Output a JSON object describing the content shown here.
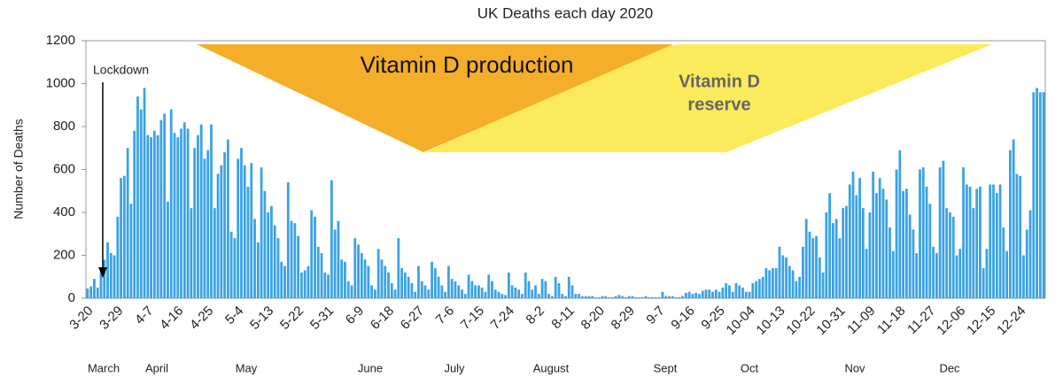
{
  "chart_data": {
    "type": "bar",
    "title": "UK Deaths each day 2020",
    "ylabel": "Number of Deaths",
    "categories": [
      "3-20",
      null,
      null,
      null,
      null,
      null,
      null,
      null,
      null,
      "3-29",
      null,
      null,
      null,
      null,
      null,
      null,
      null,
      null,
      "4-7",
      null,
      null,
      null,
      null,
      null,
      null,
      null,
      null,
      "4-16",
      null,
      null,
      null,
      null,
      null,
      null,
      null,
      null,
      "4-25",
      null,
      null,
      null,
      null,
      null,
      null,
      null,
      null,
      "5-4",
      null,
      null,
      null,
      null,
      null,
      null,
      null,
      null,
      "5-13",
      null,
      null,
      null,
      null,
      null,
      null,
      null,
      null,
      "5-22",
      null,
      null,
      null,
      null,
      null,
      null,
      null,
      null,
      "5-31",
      null,
      null,
      null,
      null,
      null,
      null,
      null,
      null,
      "6-9",
      null,
      null,
      null,
      null,
      null,
      null,
      null,
      null,
      "6-18",
      null,
      null,
      null,
      null,
      null,
      null,
      null,
      null,
      "6-27",
      null,
      null,
      null,
      null,
      null,
      null,
      null,
      null,
      "7-6",
      null,
      null,
      null,
      null,
      null,
      null,
      null,
      null,
      "7-15",
      null,
      null,
      null,
      null,
      null,
      null,
      null,
      null,
      "7-24",
      null,
      null,
      null,
      null,
      null,
      null,
      null,
      null,
      "8-2",
      null,
      null,
      null,
      null,
      null,
      null,
      null,
      null,
      "8-11",
      null,
      null,
      null,
      null,
      null,
      null,
      null,
      null,
      "8-20",
      null,
      null,
      null,
      null,
      null,
      null,
      null,
      null,
      "8-29",
      null,
      null,
      null,
      null,
      null,
      null,
      null,
      null,
      "9-7",
      null,
      null,
      null,
      null,
      null,
      null,
      null,
      null,
      "9-16",
      null,
      null,
      null,
      null,
      null,
      null,
      null,
      null,
      "9-25",
      null,
      null,
      null,
      null,
      null,
      null,
      null,
      null,
      "10-04",
      null,
      null,
      null,
      null,
      null,
      null,
      null,
      null,
      "10-13",
      null,
      null,
      null,
      null,
      null,
      null,
      null,
      null,
      "10-22",
      null,
      null,
      null,
      null,
      null,
      null,
      null,
      null,
      "10-31",
      null,
      null,
      null,
      null,
      null,
      null,
      null,
      null,
      "11-09",
      null,
      null,
      null,
      null,
      null,
      null,
      null,
      null,
      "11-18",
      null,
      null,
      null,
      null,
      null,
      null,
      null,
      null,
      "11-27",
      null,
      null,
      null,
      null,
      null,
      null,
      null,
      null,
      "12-06",
      null,
      null,
      null,
      null,
      null,
      null,
      null,
      null,
      "12-15",
      null,
      null,
      null,
      null,
      null,
      null,
      null,
      null,
      "12-24",
      null,
      null,
      null,
      null,
      null,
      null,
      null
    ],
    "values": [
      45,
      55,
      90,
      50,
      120,
      180,
      260,
      210,
      200,
      380,
      560,
      570,
      700,
      440,
      780,
      940,
      880,
      980,
      760,
      750,
      780,
      760,
      830,
      860,
      450,
      880,
      770,
      750,
      790,
      820,
      790,
      420,
      700,
      760,
      810,
      650,
      690,
      810,
      420,
      580,
      620,
      680,
      740,
      310,
      280,
      650,
      700,
      620,
      520,
      630,
      370,
      260,
      610,
      500,
      400,
      430,
      340,
      280,
      170,
      150,
      540,
      360,
      350,
      290,
      120,
      130,
      150,
      410,
      380,
      240,
      210,
      120,
      110,
      550,
      320,
      360,
      180,
      170,
      80,
      60,
      280,
      250,
      210,
      180,
      150,
      60,
      40,
      230,
      180,
      150,
      120,
      70,
      40,
      280,
      140,
      120,
      100,
      70,
      30,
      150,
      80,
      60,
      40,
      170,
      140,
      100,
      60,
      30,
      150,
      90,
      80,
      60,
      40,
      20,
      110,
      80,
      60,
      60,
      50,
      30,
      110,
      80,
      40,
      30,
      20,
      15,
      120,
      60,
      50,
      40,
      20,
      120,
      80,
      40,
      60,
      20,
      90,
      80,
      20,
      10,
      100,
      70,
      20,
      10,
      100,
      60,
      20,
      20,
      10,
      10,
      10,
      10,
      5,
      5,
      10,
      10,
      5,
      5,
      10,
      15,
      10,
      5,
      10,
      10,
      5,
      5,
      5,
      10,
      5,
      5,
      5,
      5,
      30,
      10,
      10,
      10,
      5,
      5,
      10,
      25,
      30,
      20,
      25,
      20,
      35,
      40,
      40,
      30,
      40,
      30,
      50,
      70,
      60,
      30,
      70,
      60,
      50,
      30,
      30,
      70,
      80,
      90,
      100,
      140,
      130,
      140,
      140,
      240,
      200,
      190,
      150,
      130,
      80,
      100,
      240,
      370,
      310,
      280,
      290,
      190,
      120,
      400,
      490,
      350,
      370,
      280,
      420,
      430,
      530,
      590,
      480,
      560,
      420,
      230,
      400,
      590,
      490,
      560,
      510,
      460,
      330,
      220,
      600,
      690,
      500,
      510,
      390,
      320,
      210,
      600,
      610,
      520,
      440,
      240,
      210,
      610,
      640,
      420,
      400,
      380,
      200,
      230,
      610,
      530,
      520,
      420,
      510,
      520,
      140,
      230,
      530,
      530,
      490,
      530,
      330,
      220,
      690,
      740,
      580,
      570,
      200,
      320,
      410,
      960,
      980,
      960,
      960
    ],
    "color": "#3aa3e3",
    "ylim": [
      0,
      1200
    ],
    "yticks": [
      0,
      200,
      400,
      600,
      800,
      1000,
      1200
    ],
    "grid": false,
    "month_labels": [
      "March",
      "April",
      "May",
      "June",
      "July",
      "August",
      "Sept",
      "Oct",
      "Nov",
      "Dec"
    ],
    "annotations": {
      "lockdown": "Lockdown",
      "production": "Vitamin D production",
      "reserve": [
        "Vitamin D",
        "reserve"
      ]
    }
  }
}
